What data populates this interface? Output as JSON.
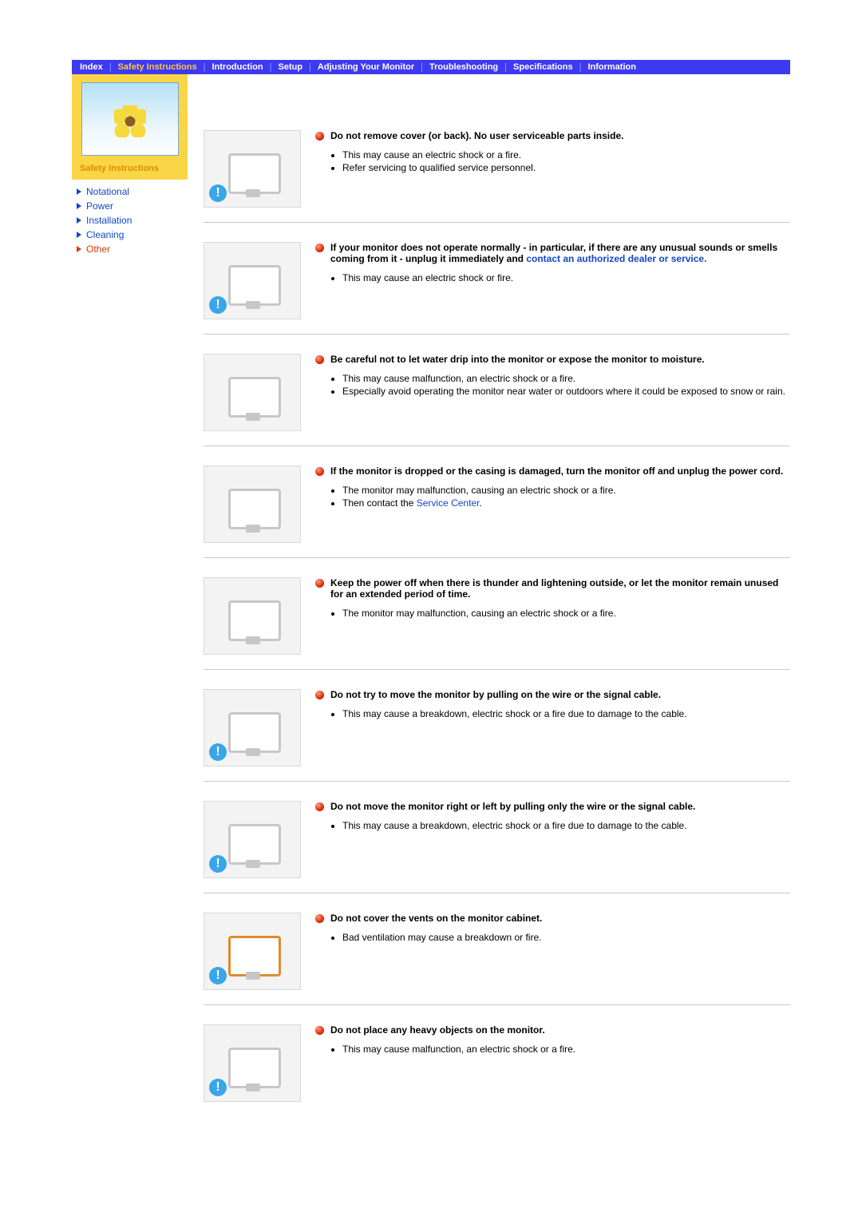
{
  "nav": {
    "items": [
      {
        "label": "Index",
        "active": false
      },
      {
        "label": "Safety Instructions",
        "active": true
      },
      {
        "label": "Introduction",
        "active": false
      },
      {
        "label": "Setup",
        "active": false
      },
      {
        "label": "Adjusting Your Monitor",
        "active": false
      },
      {
        "label": "Troubleshooting",
        "active": false
      },
      {
        "label": "Specifications",
        "active": false
      },
      {
        "label": "Information",
        "active": false
      }
    ],
    "separator": "|",
    "bg_color": "#3e3af2",
    "active_color": "#ffc93c",
    "text_color": "#ffffff"
  },
  "sidebar": {
    "heading": "Safety Instructions",
    "links": [
      {
        "label": "Notational",
        "active": false
      },
      {
        "label": "Power",
        "active": false
      },
      {
        "label": "Installation",
        "active": false
      },
      {
        "label": "Cleaning",
        "active": false
      },
      {
        "label": "Other",
        "active": true
      }
    ],
    "link_color": "#1148c5",
    "active_link_color": "#d63b00",
    "hero_bg": "#f9d648"
  },
  "sections": [
    {
      "heading": "Do not remove cover (or back). No user serviceable parts inside.",
      "bullets": [
        "This may cause an electric shock or a fire.",
        "Refer servicing to qualified service personnel."
      ]
    },
    {
      "heading_pre": "If your monitor does not operate normally - in particular, if there are any unusual sounds or smells coming from it - unplug it immediately and ",
      "heading_link": "contact an authorized dealer or service.",
      "bullets": [
        "This may cause an electric shock or fire."
      ]
    },
    {
      "heading": "Be careful not to let water drip into the monitor or expose the monitor to moisture.",
      "bullets": [
        "This may cause malfunction, an electric shock or a fire.",
        "Especially avoid operating the monitor near water or outdoors where it could be exposed to snow or rain."
      ]
    },
    {
      "heading": "If the monitor is dropped or the casing is damaged, turn the monitor off and unplug the power cord.",
      "bullets_pre4a": "The monitor may malfunction, causing an electric shock or a fire.",
      "bullets_pre4b_pre": "Then contact the ",
      "bullets_pre4b_link": "Service Center",
      "bullets_pre4b_post": "."
    },
    {
      "heading": "Keep the power off when there is thunder and lightening outside, or let the monitor remain unused for an extended period of time.",
      "bullets": [
        "The monitor may malfunction, causing an electric shock or a fire."
      ]
    },
    {
      "heading": "Do not try to move the monitor by pulling on the wire or the signal cable.",
      "bullets": [
        "This may cause a breakdown, electric shock or a fire due to damage to the cable."
      ]
    },
    {
      "heading": "Do not move the monitor right or left by pulling only the wire or the signal cable.",
      "bullets": [
        "This may cause a breakdown, electric shock or a fire due to damage to the cable."
      ]
    },
    {
      "heading": "Do not cover the vents on the monitor cabinet.",
      "bullets": [
        "Bad ventilation may cause a breakdown or fire."
      ]
    },
    {
      "heading": "Do not place any heavy objects on the monitor.",
      "bullets": [
        "This may cause malfunction, an electric shock or a fire."
      ]
    }
  ],
  "colors": {
    "link": "#1148c5",
    "bullet_ball": "#d81b00",
    "divider": "#c9c9c9",
    "text": "#000000",
    "caution_bg": "#3aa5e8"
  },
  "typography": {
    "body_fontsize": 12,
    "nav_fontsize": 11,
    "font_family": "Arial"
  }
}
